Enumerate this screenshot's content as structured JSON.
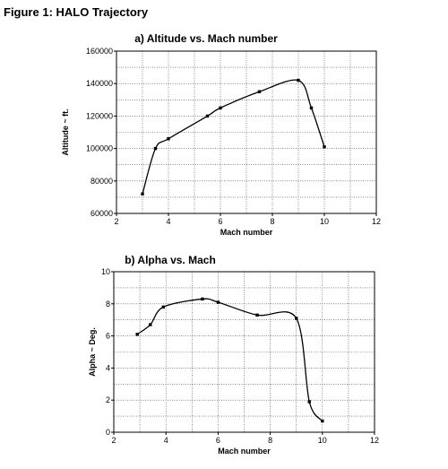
{
  "figure_title": "Figure 1: HALO Trajectory",
  "chart_data": [
    {
      "type": "line",
      "title": "a) Altitude vs. Mach number",
      "xlabel": "Mach number",
      "ylabel": "Altitude ~ ft.",
      "xlim": [
        2,
        12
      ],
      "ylim": [
        60000,
        160000
      ],
      "xticks": [
        "2",
        "4",
        "6",
        "8",
        "10",
        "12"
      ],
      "yticks": [
        "60000",
        "80000",
        "100000",
        "120000",
        "140000",
        "160000"
      ],
      "xtick_values": [
        2,
        4,
        6,
        8,
        10,
        12
      ],
      "ytick_values": [
        60000,
        80000,
        100000,
        120000,
        140000,
        160000
      ],
      "grid": true,
      "series": [
        {
          "x": [
            3.0,
            3.5,
            4.0,
            5.5,
            6.0,
            7.5,
            9.0,
            9.5,
            10.0
          ],
          "y": [
            72000,
            100000,
            106000,
            120000,
            125000,
            135000,
            142000,
            125000,
            101000
          ]
        }
      ]
    },
    {
      "type": "line",
      "title": "b) Alpha vs. Mach",
      "xlabel": "Mach number",
      "ylabel": "Alpha ~ Deg.",
      "xlim": [
        2,
        12
      ],
      "ylim": [
        0,
        10
      ],
      "xticks": [
        "2",
        "4",
        "6",
        "8",
        "10",
        "12"
      ],
      "yticks": [
        "0",
        "2",
        "4",
        "6",
        "8",
        "10"
      ],
      "xtick_values": [
        2,
        4,
        6,
        8,
        10,
        12
      ],
      "ytick_values": [
        0,
        2,
        4,
        6,
        8,
        10
      ],
      "grid": true,
      "series": [
        {
          "x": [
            2.9,
            3.4,
            3.9,
            5.4,
            6.0,
            7.5,
            9.0,
            9.5,
            10.0
          ],
          "y": [
            6.1,
            6.7,
            7.8,
            8.3,
            8.1,
            7.3,
            7.1,
            1.9,
            0.7
          ]
        }
      ]
    }
  ]
}
